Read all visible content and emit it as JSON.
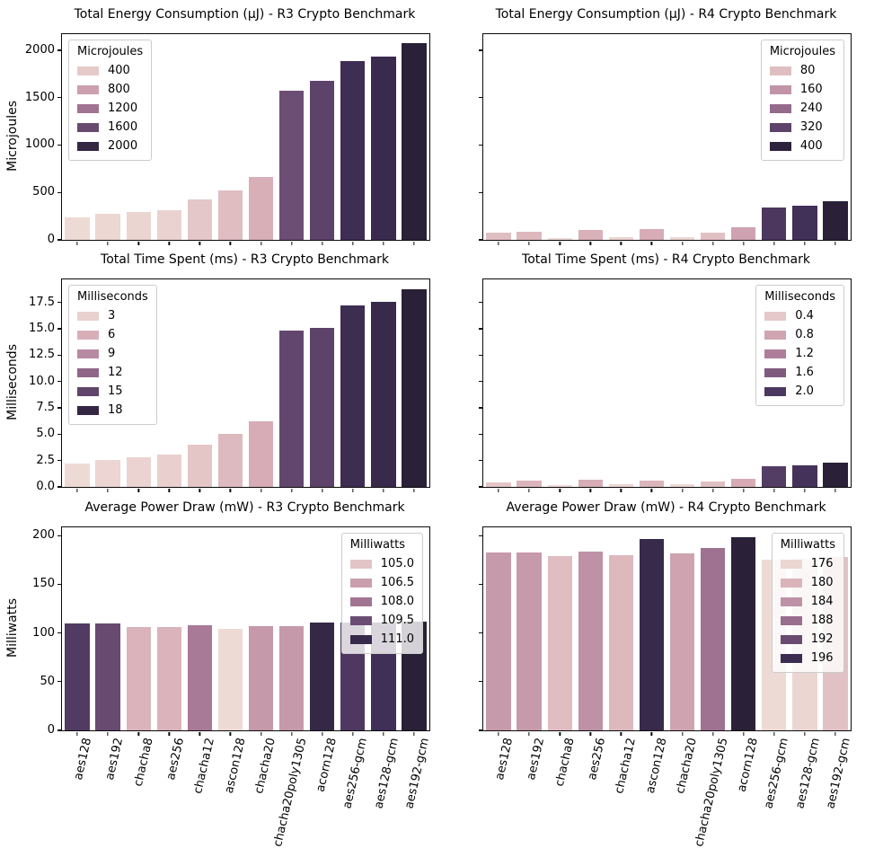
{
  "figure": {
    "background": "#ffffff",
    "text_color": "#000000",
    "spine_color": "#0a0a0a"
  },
  "palette_stops": [
    [
      0.0,
      "#eedad5"
    ],
    [
      0.25,
      "#d6abb5"
    ],
    [
      0.5,
      "#a87897"
    ],
    [
      0.75,
      "#65486f"
    ],
    [
      0.875,
      "#43315a"
    ],
    [
      1.0,
      "#2a2138"
    ]
  ],
  "chart_data": [
    {
      "type": "bar",
      "title": "Total Energy Consumption (μJ) - R3 Crypto Benchmark",
      "ylabel": "Microjoules",
      "categories": [
        "aes128",
        "aes192",
        "chacha8",
        "aes256",
        "chacha12",
        "ascon128",
        "chacha20",
        "chacha20poly1305",
        "acorn128",
        "aes256-gcm",
        "aes128-gcm",
        "aes192-gcm"
      ],
      "values": [
        240,
        272,
        293,
        315,
        430,
        525,
        665,
        1570,
        1675,
        1890,
        1930,
        2080
      ],
      "ylim": [
        0,
        2170
      ],
      "yticks": [
        "0",
        "500",
        "1000",
        "1500",
        "2000"
      ],
      "ytick_labels_shown": true,
      "xtick_labels_shown": false,
      "grid": false,
      "legend": {
        "title": "Microjoules",
        "position": "upper-left",
        "entries": [
          "400",
          "800",
          "1200",
          "1600",
          "2000"
        ]
      }
    },
    {
      "type": "bar",
      "title": "Total Energy Consumption (μJ) - R4 Crypto Benchmark",
      "ylabel": "",
      "categories": [
        "aes128",
        "aes192",
        "chacha8",
        "aes256",
        "chacha12",
        "ascon128",
        "chacha20",
        "chacha20poly1305",
        "acorn128",
        "aes256-gcm",
        "aes128-gcm",
        "aes192-gcm"
      ],
      "values": [
        80,
        90,
        22,
        105,
        32,
        115,
        29,
        74,
        135,
        345,
        360,
        405
      ],
      "ylim": [
        0,
        2170
      ],
      "yticks": [
        "0",
        "500",
        "1000",
        "1500",
        "2000"
      ],
      "ytick_labels_shown": false,
      "xtick_labels_shown": false,
      "grid": false,
      "legend": {
        "title": "Microjoules",
        "position": "upper-right",
        "entries": [
          "80",
          "160",
          "240",
          "320",
          "400"
        ]
      }
    },
    {
      "type": "bar",
      "title": "Total Time Spent (ms) - R3 Crypto Benchmark",
      "ylabel": "Milliseconds",
      "categories": [
        "aes128",
        "aes192",
        "chacha8",
        "aes256",
        "chacha12",
        "ascon128",
        "chacha20",
        "chacha20poly1305",
        "acorn128",
        "aes256-gcm",
        "aes128-gcm",
        "aes192-gcm"
      ],
      "values": [
        2.2,
        2.6,
        2.85,
        3.05,
        4.0,
        5.05,
        6.25,
        14.8,
        15.1,
        17.2,
        17.55,
        18.75
      ],
      "ylim": [
        0,
        19.7
      ],
      "yticks": [
        "0.0",
        "2.5",
        "5.0",
        "7.5",
        "10.0",
        "12.5",
        "15.0",
        "17.5"
      ],
      "ytick_labels_shown": true,
      "xtick_labels_shown": false,
      "grid": false,
      "legend": {
        "title": "Milliseconds",
        "position": "upper-left",
        "entries": [
          "3",
          "6",
          "9",
          "12",
          "15",
          "18"
        ]
      }
    },
    {
      "type": "bar",
      "title": "Total Time Spent (ms) - R4 Crypto Benchmark",
      "ylabel": "",
      "categories": [
        "aes128",
        "aes192",
        "chacha8",
        "aes256",
        "chacha12",
        "ascon128",
        "chacha20",
        "chacha20poly1305",
        "acorn128",
        "aes256-gcm",
        "aes128-gcm",
        "aes192-gcm"
      ],
      "values": [
        0.43,
        0.62,
        0.2,
        0.7,
        0.25,
        0.62,
        0.22,
        0.5,
        0.73,
        1.93,
        2.05,
        2.33
      ],
      "ylim": [
        0,
        19.7
      ],
      "yticks": [
        "0.0",
        "2.5",
        "5.0",
        "7.5",
        "10.0",
        "12.5",
        "15.0",
        "17.5"
      ],
      "ytick_labels_shown": false,
      "xtick_labels_shown": false,
      "grid": false,
      "legend": {
        "title": "Milliseconds",
        "position": "upper-right",
        "entries": [
          "0.4",
          "0.8",
          "1.2",
          "1.6",
          "2.0"
        ]
      }
    },
    {
      "type": "bar",
      "title": "Average Power Draw (mW) - R3 Crypto Benchmark",
      "ylabel": "Milliwatts",
      "categories": [
        "aes128",
        "aes192",
        "chacha8",
        "aes256",
        "chacha12",
        "ascon128",
        "chacha20",
        "chacha20poly1305",
        "acorn128",
        "aes256-gcm",
        "aes128-gcm",
        "aes192-gcm"
      ],
      "values": [
        110.2,
        109.6,
        105.7,
        105.7,
        107.8,
        104.2,
        106.7,
        106.7,
        111.1,
        110.3,
        110.7,
        111.5
      ],
      "ylim": [
        0,
        208.5
      ],
      "yticks": [
        "0",
        "50",
        "100",
        "150",
        "200"
      ],
      "ytick_labels_shown": true,
      "xtick_labels_shown": true,
      "grid": false,
      "legend": {
        "title": "Milliwatts",
        "position": "upper-right",
        "entries": [
          "105.0",
          "106.5",
          "108.0",
          "109.5",
          "111.0"
        ]
      }
    },
    {
      "type": "bar",
      "title": "Average Power Draw (mW) - R4 Crypto Benchmark",
      "ylabel": "",
      "categories": [
        "aes128",
        "aes192",
        "chacha8",
        "aes256",
        "chacha12",
        "ascon128",
        "chacha20",
        "chacha20poly1305",
        "acorn128",
        "aes256-gcm",
        "aes128-gcm",
        "aes192-gcm"
      ],
      "values": [
        183,
        183,
        179,
        184,
        179.5,
        196.5,
        182,
        187.5,
        198,
        175.5,
        176,
        178.5
      ],
      "ylim": [
        0,
        208.5
      ],
      "yticks": [
        "0",
        "50",
        "100",
        "150",
        "200"
      ],
      "ytick_labels_shown": false,
      "xtick_labels_shown": true,
      "grid": false,
      "legend": {
        "title": "Milliwatts",
        "position": "upper-right",
        "entries": [
          "176",
          "180",
          "184",
          "188",
          "192",
          "196"
        ]
      }
    }
  ]
}
